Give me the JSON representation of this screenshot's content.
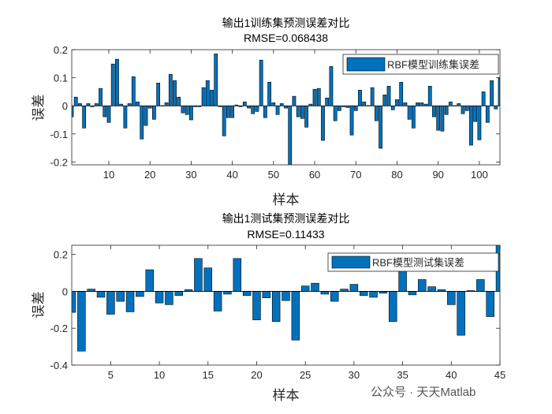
{
  "watermark": "公众号 · 天天Matlab",
  "bar_color": "#0072BD",
  "chart_data": [
    {
      "type": "bar",
      "title": "输出1训练集预测误差对比",
      "subtitle": "RMSE=0.068438",
      "xlabel": "样本",
      "ylabel": "误差",
      "legend": "RBF模型训练集误差",
      "legend_position": "top-right",
      "grid": false,
      "xlim": [
        1,
        105
      ],
      "ylim": [
        -0.21,
        0.2
      ],
      "xticks": [
        10,
        20,
        30,
        40,
        50,
        60,
        70,
        80,
        90,
        100
      ],
      "yticks": [
        -0.2,
        -0.1,
        0,
        0.1,
        0.2
      ],
      "values": [
        -0.039,
        0.031,
        0.008,
        -0.079,
        0.008,
        -0.003,
        0.008,
        0.062,
        -0.039,
        -0.059,
        0.149,
        0.166,
        0.006,
        -0.079,
        0.008,
        0.104,
        0.014,
        -0.118,
        -0.07,
        -0.008,
        -0.048,
        0.081,
        0.001,
        0.011,
        0.112,
        0.09,
        0.031,
        -0.025,
        -0.031,
        -0.05,
        -0.003,
        -0.003,
        0.065,
        0.09,
        0.056,
        0.185,
        -0.003,
        -0.107,
        -0.042,
        -0.042,
        0.003,
        -0.003,
        0.014,
        -0.008,
        -0.028,
        -0.02,
        0.163,
        -0.042,
        0.084,
        0.011,
        -0.031,
        0.008,
        -0.008,
        -0.23,
        0.034,
        -0.039,
        -0.045,
        -0.076,
        0.006,
        0.059,
        0.062,
        -0.123,
        0.028,
        0.14,
        -0.053,
        -0.017,
        -0.003,
        -0.006,
        -0.104,
        -0.017,
        0.056,
        0.014,
        0.001,
        0.065,
        -0.053,
        -0.151,
        0.039,
        0.07,
        -0.014,
        0.022,
        0.084,
        0.011,
        -0.048,
        -0.079,
        0.011,
        0.011,
        0.006,
        0.07,
        -0.039,
        -0.087,
        -0.09,
        -0.031,
        0.014,
        0.001,
        0.008,
        -0.028,
        -0.017,
        -0.14,
        -0.056,
        -0.121,
        0.05,
        -0.059,
        0.09,
        -0.011,
        0.101
      ]
    },
    {
      "type": "bar",
      "title": "输出1测试集预测误差对比",
      "subtitle": "RMSE=0.11433",
      "xlabel": "样本",
      "ylabel": "误差",
      "legend": "RBF模型测试集误差",
      "legend_position": "top-right",
      "grid": false,
      "xlim": [
        1,
        45
      ],
      "ylim": [
        -0.4,
        0.25
      ],
      "xticks": [
        5,
        10,
        15,
        20,
        25,
        30,
        35,
        40,
        45
      ],
      "yticks": [
        -0.4,
        -0.2,
        0,
        0.2
      ],
      "values": [
        -0.114,
        -0.324,
        0.012,
        -0.032,
        -0.124,
        -0.054,
        -0.111,
        -0.028,
        0.117,
        -0.063,
        -0.072,
        -0.023,
        0.009,
        0.178,
        0.127,
        -0.107,
        -0.015,
        0.178,
        -0.023,
        -0.155,
        -0.035,
        -0.164,
        -0.05,
        -0.264,
        0.029,
        0.044,
        -0.015,
        -0.054,
        0.012,
        0.038,
        -0.023,
        -0.032,
        -0.01,
        -0.164,
        0.125,
        -0.019,
        0.064,
        0.025,
        0.009,
        -0.072,
        -0.238,
        0.004,
        0.064,
        -0.137,
        0.26
      ]
    }
  ]
}
